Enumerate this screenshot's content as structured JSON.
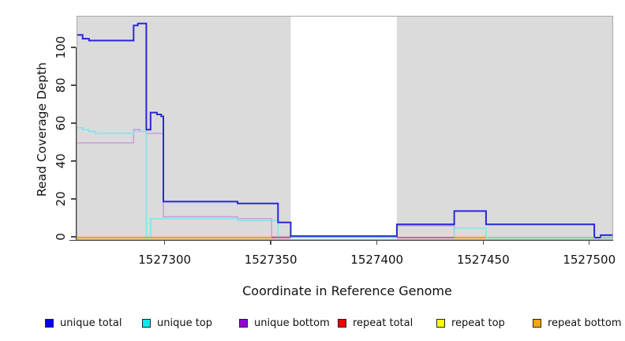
{
  "figure": {
    "background": "#ffffff",
    "panel_background": "#dbdbdb",
    "panel_border_color": "#a8a8a8"
  },
  "chart_data": {
    "type": "line",
    "style": "step",
    "title": "",
    "xlabel": "Coordinate in Reference Genome",
    "ylabel": "Read Coverage Depth",
    "xlim": [
      1527258.5,
      1527510.5
    ],
    "ylim": [
      0,
      117.5
    ],
    "x_ticks": [
      1527300,
      1527350,
      1527400,
      1527450,
      1527500
    ],
    "y_ticks": [
      0,
      20,
      40,
      60,
      80,
      100
    ],
    "grid": "off",
    "legend_position": "bottom",
    "panel_bg": "#dbdbdb",
    "highlight_band": {
      "x0": 1527359,
      "x1": 1527409,
      "color": "#ffffff"
    },
    "series": [
      {
        "name": "unique bottom",
        "color": "#c7a0dc",
        "width": 1.6,
        "points": [
          [
            1527258.5,
            50
          ],
          [
            1527285,
            57
          ],
          [
            1527288,
            56
          ],
          [
            1527291,
            55
          ],
          [
            1527299,
            11
          ],
          [
            1527334,
            10
          ],
          [
            1527350,
            0.5
          ],
          [
            1527359,
            0
          ],
          [
            1527409,
            6.3
          ],
          [
            1527436,
            0
          ],
          [
            1527510.5,
            0
          ]
        ]
      },
      {
        "name": "unique top",
        "color": "#7de6ef",
        "width": 1.6,
        "points": [
          [
            1527258.5,
            58
          ],
          [
            1527261,
            57
          ],
          [
            1527264,
            56
          ],
          [
            1527267,
            55
          ],
          [
            1527285,
            56
          ],
          [
            1527291,
            0
          ],
          [
            1527293,
            10
          ],
          [
            1527334,
            9
          ],
          [
            1527353,
            0
          ],
          [
            1527436,
            5
          ],
          [
            1527451,
            0
          ],
          [
            1527510.5,
            0
          ]
        ]
      },
      {
        "name": "unique total",
        "color": "#2929d6",
        "width": 2,
        "points": [
          [
            1527258.5,
            107
          ],
          [
            1527261,
            105
          ],
          [
            1527264,
            104
          ],
          [
            1527285,
            112
          ],
          [
            1527287,
            113
          ],
          [
            1527291,
            57
          ],
          [
            1527293,
            66
          ],
          [
            1527296,
            65
          ],
          [
            1527298,
            64
          ],
          [
            1527299,
            19
          ],
          [
            1527334,
            18
          ],
          [
            1527353,
            8
          ],
          [
            1527359,
            0.8
          ],
          [
            1527409,
            7
          ],
          [
            1527436,
            14
          ],
          [
            1527451,
            7
          ],
          [
            1527502,
            0
          ],
          [
            1527505,
            1.3
          ],
          [
            1527510.5,
            1.3
          ]
        ]
      }
    ],
    "baseline_segments": [
      {
        "name": "repeat bottom",
        "color": "#ffa200",
        "width": 2.2,
        "from": 1527258.5,
        "to": 1527352,
        "value": 0
      },
      {
        "name": "repeat total",
        "color": "#c75b7a",
        "width": 1.7,
        "from": 1527350,
        "to": 1527359,
        "value": 0
      },
      {
        "name": "repeat total",
        "color": "#c75b7a",
        "width": 1.7,
        "from": 1527409,
        "to": 1527436,
        "value": 0
      },
      {
        "name": "repeat bottom",
        "color": "#ffa200",
        "width": 2.2,
        "from": 1527436,
        "to": 1527451,
        "value": 0
      },
      {
        "name": "repeat top",
        "color": "#8ecf9b",
        "width": 1.7,
        "from": 1527452,
        "to": 1527502,
        "value": 0
      },
      {
        "name": "repeat top",
        "color": "#8ecf9b",
        "width": 1.7,
        "from": 1527505,
        "to": 1527510.5,
        "value": 0
      }
    ]
  },
  "legend": {
    "items": [
      {
        "label": "unique total",
        "swatch_color": "#0000ee"
      },
      {
        "label": "unique top",
        "swatch_color": "#00eeee"
      },
      {
        "label": "unique bottom",
        "swatch_color": "#9400d3"
      },
      {
        "label": "repeat total",
        "swatch_color": "#ee0000"
      },
      {
        "label": "repeat top",
        "swatch_color": "#ffff00"
      },
      {
        "label": "repeat bottom",
        "swatch_color": "#ffa500"
      }
    ]
  }
}
